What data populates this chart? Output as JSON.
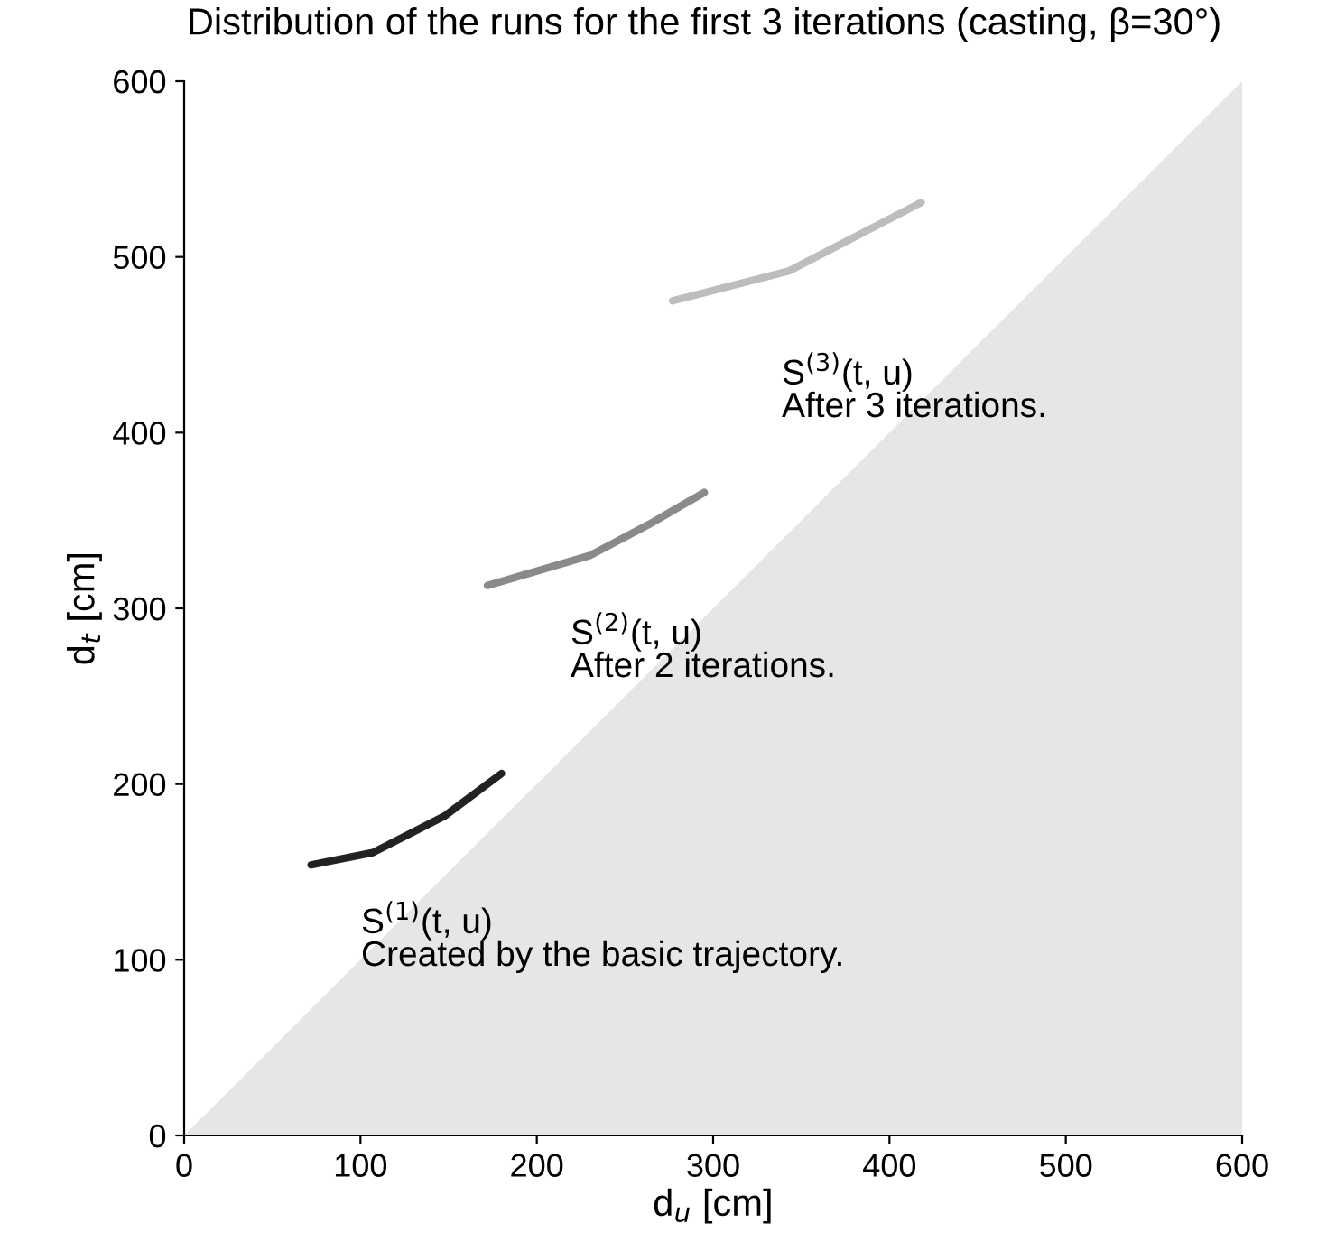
{
  "chart_data": {
    "type": "line",
    "title": "Distribution of the runs for the first 3 iterations (casting, β=30°)",
    "xlabel": "d$_{u}$ [cm]",
    "ylabel": "d$_{t}$ [cm]",
    "xlim": [
      0,
      600
    ],
    "ylim": [
      0,
      600
    ],
    "xticks": [
      0,
      100,
      200,
      300,
      400,
      500,
      600
    ],
    "yticks": [
      0,
      100,
      200,
      300,
      400,
      500,
      600
    ],
    "grid": false,
    "legend": false,
    "series": [
      {
        "type": "area",
        "color": "#e6e6e6",
        "x": [
          0,
          600
        ],
        "values": [
          0,
          600
        ]
      },
      {
        "color": "#222222",
        "x": [
          72,
          107,
          148,
          180
        ],
        "values": [
          154,
          161,
          182,
          206
        ]
      },
      {
        "color": "#8a8a8a",
        "x": [
          172,
          230,
          264,
          295
        ],
        "values": [
          313,
          330,
          348,
          366
        ]
      },
      {
        "color": "#bdbdbd",
        "x": [
          277,
          343,
          418
        ],
        "values": [
          475,
          492,
          531
        ]
      }
    ],
    "annotations": [
      "S$^{(1)}$(t, u)",
      "Created by the basic trajectory.",
      "S$^{(2)}$(t, u)",
      "After 2 iterations.",
      "S$^{(3)}$(t, u)",
      "After 3 iterations."
    ]
  }
}
